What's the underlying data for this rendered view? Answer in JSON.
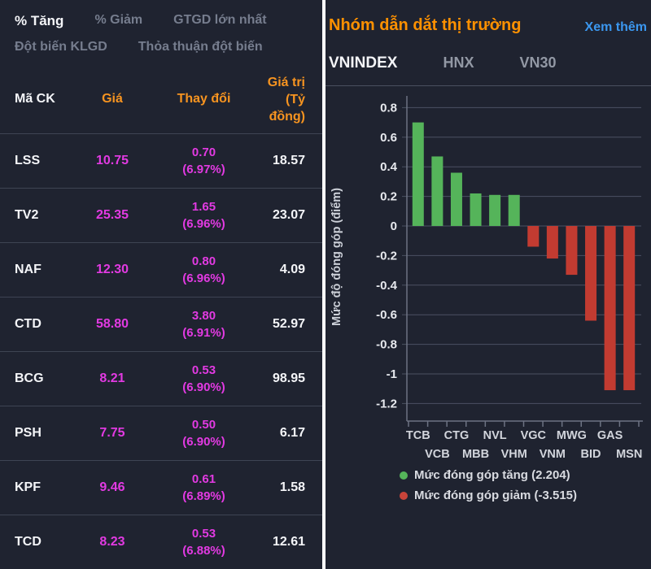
{
  "colors": {
    "background": "#1f2330",
    "text_primary": "#f4f5f8",
    "text_muted": "#767d8e",
    "accent_orange": "#ff9100",
    "header_orange": "#f79420",
    "link_blue": "#3b97ef",
    "magenta": "#e23ae2",
    "divider": "#3e4453",
    "grid": "#4b5162",
    "bar_green": "#55b45a",
    "bar_red": "#c23b31"
  },
  "left_panel": {
    "tabs_row1": [
      {
        "name": "tab-pct-tang",
        "label": "% Tăng",
        "active": true
      },
      {
        "name": "tab-pct-giam",
        "label": "% Giảm",
        "active": false
      },
      {
        "name": "tab-gtgd-lon-nhat",
        "label": "GTGD lớn nhất",
        "active": false
      }
    ],
    "tabs_row2": [
      {
        "name": "tab-dot-bien-klgd",
        "label": "Đột biến KLGD",
        "active": false
      },
      {
        "name": "tab-thoa-thuan-dot-bien",
        "label": "Thỏa thuận đột biến",
        "active": false
      }
    ],
    "table": {
      "headers": {
        "symbol": "Mã CK",
        "price": "Giá",
        "change": "Thay đổi",
        "value_line1": "Giá trị",
        "value_line2": "(Tỷ đồng)"
      },
      "rows": [
        {
          "symbol": "LSS",
          "price": "10.75",
          "change": "0.70",
          "change_pct": "(6.97%)",
          "value": "18.57"
        },
        {
          "symbol": "TV2",
          "price": "25.35",
          "change": "1.65",
          "change_pct": "(6.96%)",
          "value": "23.07"
        },
        {
          "symbol": "NAF",
          "price": "12.30",
          "change": "0.80",
          "change_pct": "(6.96%)",
          "value": "4.09"
        },
        {
          "symbol": "CTD",
          "price": "58.80",
          "change": "3.80",
          "change_pct": "(6.91%)",
          "value": "52.97"
        },
        {
          "symbol": "BCG",
          "price": "8.21",
          "change": "0.53",
          "change_pct": "(6.90%)",
          "value": "98.95"
        },
        {
          "symbol": "PSH",
          "price": "7.75",
          "change": "0.50",
          "change_pct": "(6.90%)",
          "value": "6.17"
        },
        {
          "symbol": "KPF",
          "price": "9.46",
          "change": "0.61",
          "change_pct": "(6.89%)",
          "value": "1.58"
        },
        {
          "symbol": "TCD",
          "price": "8.23",
          "change": "0.53",
          "change_pct": "(6.88%)",
          "value": "12.61"
        }
      ]
    }
  },
  "right_panel": {
    "title": "Nhóm dẫn dắt thị trường",
    "link": "Xem thêm",
    "tabs": [
      {
        "name": "tab-vnindex",
        "label": "VNINDEX",
        "active": true
      },
      {
        "name": "tab-hnx",
        "label": "HNX",
        "active": false
      },
      {
        "name": "tab-vn30",
        "label": "VN30",
        "active": false
      }
    ],
    "legend": [
      {
        "name": "legend-increase",
        "label": "Mức đóng góp tăng (2.204)",
        "color": "#55b45a"
      },
      {
        "name": "legend-decrease",
        "label": "Mức đóng góp giảm (-3.515)",
        "color": "#c8443a"
      }
    ]
  },
  "chart_data": {
    "type": "bar",
    "title": "Nhóm dẫn dắt thị trường",
    "ylabel": "Mức độ đóng góp (điểm)",
    "categories": [
      "TCB",
      "VCB",
      "CTG",
      "MBB",
      "NVL",
      "VHM",
      "VGC",
      "VNM",
      "MWG",
      "BID",
      "GAS",
      "MSN"
    ],
    "values": [
      0.7,
      0.47,
      0.36,
      0.22,
      0.21,
      0.21,
      -0.14,
      -0.22,
      -0.33,
      -0.64,
      -1.11,
      -1.11
    ],
    "ylim": [
      -1.2,
      0.8
    ],
    "ytick_step": 0.2,
    "grid": true,
    "positive_color": "#55b45a",
    "negative_color": "#c23b31",
    "positive_total": 2.204,
    "negative_total": -3.515,
    "legend_position": "bottom",
    "legend_entries": [
      "Mức đóng góp tăng (2.204)",
      "Mức đóng góp giảm (-3.515)"
    ]
  }
}
